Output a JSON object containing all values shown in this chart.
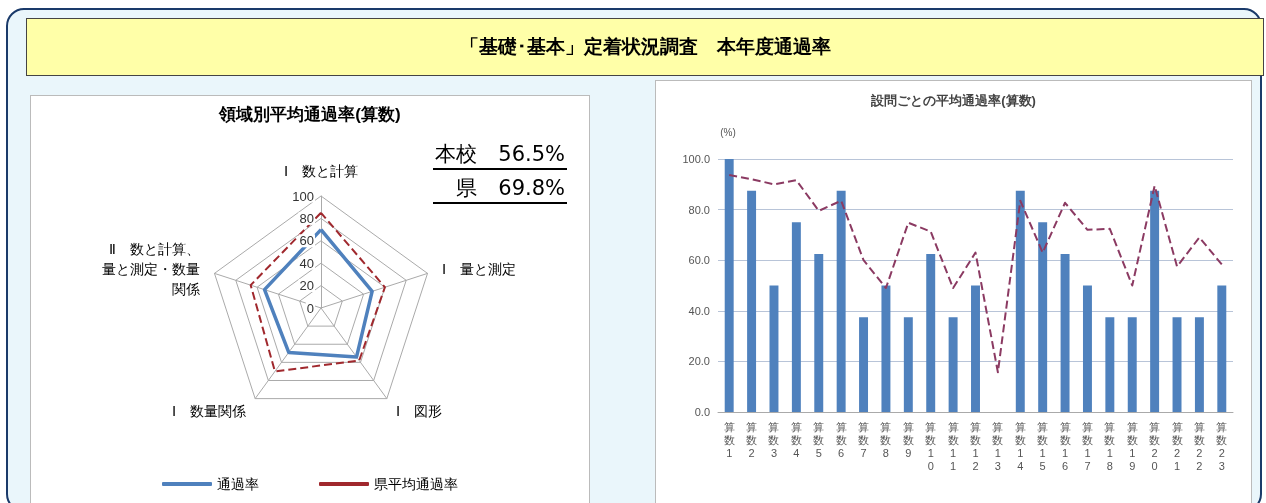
{
  "chart_data": [
    {
      "type": "radar",
      "title": "「基礎･基本」定着状況調査　本年度通過率",
      "subtitle": "領域別平均通過率(算数)",
      "categories": [
        "Ⅰ　数と計算",
        "Ⅰ　量と測定",
        "Ⅰ　図形",
        "Ⅰ　数量関係",
        "Ⅱ　数と計算、量と測定・数量関係"
      ],
      "series": [
        {
          "name": "通過率",
          "color": "#4f81bd",
          "line_style": "solid",
          "values": [
            70,
            48,
            54,
            49,
            53
          ]
        },
        {
          "name": "県平均通過率",
          "color": "#a0282d",
          "line_style": "dashed",
          "values": [
            85,
            60,
            58,
            70,
            66
          ]
        }
      ],
      "ylim": [
        0,
        100
      ],
      "yticks": [
        0,
        20,
        40,
        60,
        80,
        100
      ],
      "grid": true,
      "legend": "bottom",
      "marker": "none",
      "annotations": [
        "本校　56.5%",
        "県　69.8%"
      ]
    },
    {
      "type": "bar",
      "title": "設問ごとの平均通過率(算数)",
      "ylabel": "(%)",
      "categories": [
        "算数1",
        "算数2",
        "算数3",
        "算数4",
        "算数5",
        "算数6",
        "算数7",
        "算数8",
        "算数9",
        "算数10",
        "算数11",
        "算数12",
        "算数13",
        "算数14",
        "算数15",
        "算数16",
        "算数17",
        "算数18",
        "算数19",
        "算数20",
        "算数21",
        "算数22",
        "算数23"
      ],
      "series": [
        {
          "type": "bar",
          "color": "#4f81bd",
          "values": [
            100,
            87.5,
            50,
            75,
            62.5,
            87.5,
            37.5,
            50,
            37.5,
            62.5,
            37.5,
            50,
            0,
            87.5,
            75,
            62.5,
            50,
            37.5,
            37.5,
            87.5,
            37.5,
            37.5,
            50
          ]
        },
        {
          "type": "line",
          "color": "#8b3a62",
          "line_style": "dashed",
          "values": [
            93.7,
            92,
            90,
            91.6,
            79.5,
            83.5,
            60,
            49,
            74.8,
            71.3,
            49,
            63,
            15.7,
            83.5,
            63,
            82.7,
            72,
            72.4,
            50,
            89.4,
            57.5,
            69,
            58.3
          ]
        }
      ],
      "ylim": [
        0,
        100
      ],
      "yticks": [
        {
          "value": 0,
          "label": "0.0"
        },
        {
          "value": 20,
          "label": "20.0"
        },
        {
          "value": 40,
          "label": "40.0"
        },
        {
          "value": 60,
          "label": "60.0"
        },
        {
          "value": 80,
          "label": "80.0"
        },
        {
          "value": 100,
          "label": "100.0"
        }
      ],
      "grid": "y",
      "legend": false,
      "marker": "none"
    }
  ]
}
